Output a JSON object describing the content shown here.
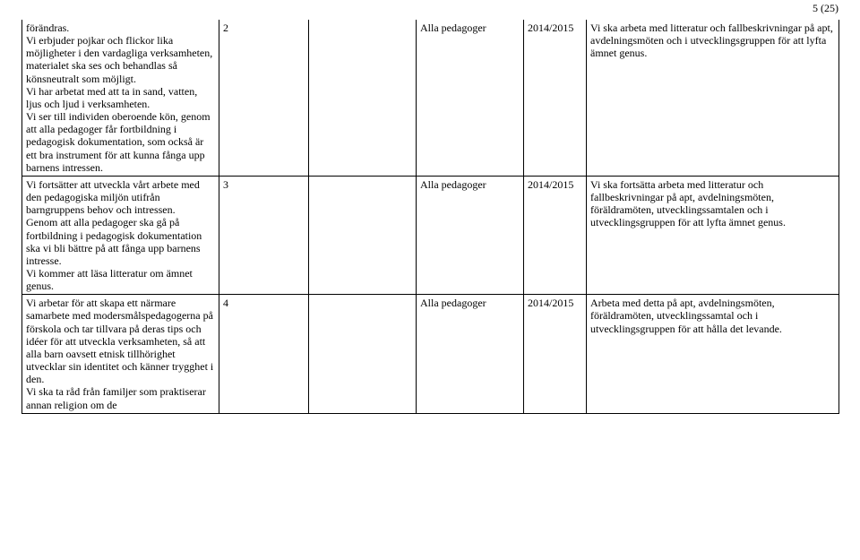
{
  "page_number": "5 (25)",
  "rows": [
    {
      "col1": "förändras.\nVi erbjuder pojkar och flickor lika möjligheter i den vardagliga verksamheten, materialet ska ses och behandlas så könsneutralt som möjligt.\nVi har arbetat med att ta in sand, vatten, ljus och ljud i verksamheten.\nVi ser till individen oberoende kön, genom att alla pedagoger får fortbildning i pedagogisk dokumentation, som också är ett bra instrument för att kunna fånga upp barnens intressen.",
      "col2": "2",
      "col3": "",
      "col4": "Alla pedagoger",
      "col5": "2014/2015",
      "col6": "Vi ska arbeta med litteratur och fallbeskrivningar på apt, avdelningsmöten och i utvecklingsgruppen för att lyfta ämnet genus."
    },
    {
      "col1": "Vi fortsätter att utveckla vårt arbete med den pedagogiska miljön utifrån barngruppens behov och intressen.\nGenom att alla pedagoger ska gå på fortbildning i pedagogisk dokumentation ska vi bli bättre på att fånga upp barnens intresse.\nVi kommer att läsa litteratur om ämnet genus.",
      "col2": "3",
      "col3": "",
      "col4": "Alla pedagoger",
      "col5": "2014/2015",
      "col6": "Vi ska fortsätta arbeta med litteratur och fallbeskrivningar på apt, avdelningsmöten, föräldramöten, utvecklingssamtalen och i utvecklingsgruppen för att lyfta ämnet genus."
    },
    {
      "col1": "Vi arbetar för att skapa ett närmare samarbete med modersmålspedagogerna på förskola och tar tillvara på deras tips och idéer för att utveckla verksamheten, så att alla barn oavsett etnisk tillhörighet utvecklar sin identitet och känner trygghet i den.\nVi ska ta råd från familjer som praktiserar annan religion om de",
      "col2": "4",
      "col3": "",
      "col4": "Alla pedagoger",
      "col5": "2014/2015",
      "col6": "Arbeta med detta på apt, avdelningsmöten, föräldramöten, utvecklingssamtal och i utvecklingsgruppen för att hålla det levande."
    }
  ]
}
